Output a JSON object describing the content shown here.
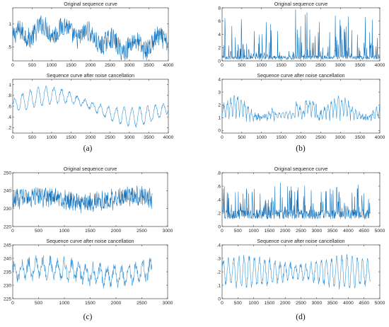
{
  "chart_data": [
    {
      "type": "line",
      "panel": "a",
      "label": "(a)",
      "title": "Original sequence curve",
      "xlim": [
        0,
        4000
      ],
      "ylim": [
        0.2,
        1.35
      ],
      "xticks": [
        0,
        500,
        1000,
        1500,
        2000,
        2500,
        3000,
        3500,
        4000
      ],
      "yticks": [
        0.5,
        1
      ],
      "series": [
        {
          "values_summary": "noisy oscillating signal, mean ~0.7, range 0.2-1.3",
          "n": 4000
        }
      ]
    },
    {
      "type": "line",
      "panel": "a",
      "label": "",
      "title": "Sequence curve after noise cancellation",
      "xlim": [
        0,
        4000
      ],
      "ylim": [
        0.1,
        1.1
      ],
      "xticks": [
        0,
        500,
        1000,
        1500,
        2000,
        2500,
        3000,
        3500,
        4000
      ],
      "yticks": [
        0.2,
        0.4,
        0.6,
        0.8,
        1
      ],
      "series": [
        {
          "values_summary": "smoothed oscillating signal, range 0.2-1.05",
          "n": 4000
        }
      ]
    },
    {
      "type": "line",
      "panel": "b",
      "label": "(b)",
      "title": "Original sequence curve",
      "xlim": [
        0,
        4000
      ],
      "ylim": [
        0,
        8
      ],
      "xticks": [
        0,
        500,
        1000,
        1500,
        2000,
        2500,
        3000,
        3500,
        4000
      ],
      "yticks": [
        0,
        2,
        4,
        6,
        8
      ],
      "series": [
        {
          "values_summary": "spiky signal, baseline ~0.3, spikes up to ~7.5",
          "n": 4000
        }
      ]
    },
    {
      "type": "line",
      "panel": "b",
      "label": "",
      "title": "Sequence curve after noise cancellation",
      "xlim": [
        0,
        4000
      ],
      "ylim": [
        -0.2,
        4
      ],
      "xticks": [
        0,
        500,
        1000,
        1500,
        2000,
        2500,
        3000,
        3500,
        4000
      ],
      "yticks": [
        0,
        1,
        2,
        3,
        4
      ],
      "series": [
        {
          "values_summary": "smoothed spiky signal, range ~0-3.9",
          "n": 4000
        }
      ]
    },
    {
      "type": "line",
      "panel": "c",
      "label": "(c)",
      "title": "Original sequence curve",
      "xlim": [
        0,
        3000
      ],
      "ylim": [
        220,
        250
      ],
      "xticks": [
        0,
        500,
        1000,
        1500,
        2000,
        2500,
        3000
      ],
      "yticks": [
        220,
        230,
        240,
        250
      ],
      "series": [
        {
          "values_summary": "noisy signal, mean ~235, range 224-246",
          "n": 2700
        }
      ]
    },
    {
      "type": "line",
      "panel": "c",
      "label": "",
      "title": "Sequence curve after noise cancellation",
      "xlim": [
        0,
        3000
      ],
      "ylim": [
        225,
        245
      ],
      "xticks": [
        0,
        500,
        1000,
        1500,
        2000,
        2500,
        3000
      ],
      "yticks": [
        225,
        230,
        235,
        240,
        245
      ],
      "series": [
        {
          "values_summary": "smoothed signal, mean ~235, range 228-244",
          "n": 2700
        }
      ]
    },
    {
      "type": "line",
      "panel": "d",
      "label": "(d)",
      "title": "Original sequence curve",
      "xlim": [
        0,
        5000
      ],
      "ylim": [
        0,
        0.8
      ],
      "xticks": [
        0,
        500,
        1000,
        1500,
        2000,
        2500,
        3000,
        3500,
        4000,
        4500,
        5000
      ],
      "yticks": [
        0,
        0.2,
        0.4,
        0.6,
        0.8
      ],
      "series": [
        {
          "values_summary": "noisy signal, mean ~0.2, range 0.05-0.68",
          "n": 4700
        }
      ]
    },
    {
      "type": "line",
      "panel": "d",
      "label": "",
      "title": "Sequence curve after noise cancellation",
      "xlim": [
        0,
        5000
      ],
      "ylim": [
        0,
        0.4
      ],
      "xticks": [
        0,
        500,
        1000,
        1500,
        2000,
        2500,
        3000,
        3500,
        4000,
        4500,
        5000
      ],
      "yticks": [
        0,
        0.1,
        0.2,
        0.3,
        0.4
      ],
      "series": [
        {
          "values_summary": "smoothed oscillating signal, range 0.05-0.36",
          "n": 4700
        }
      ]
    }
  ]
}
